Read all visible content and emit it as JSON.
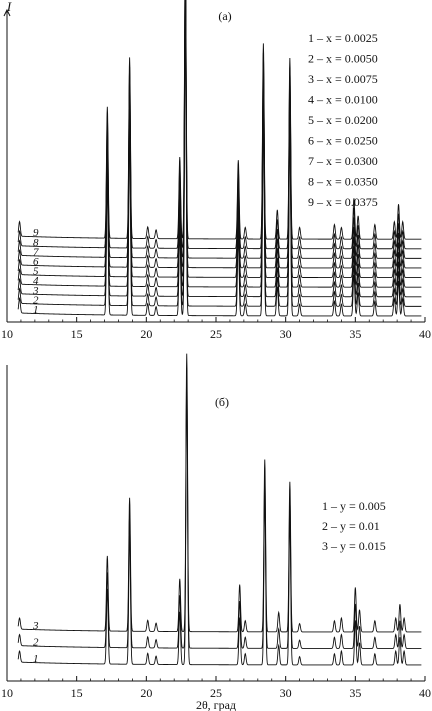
{
  "chart_data": [
    {
      "type": "line",
      "panel_label": "(a)",
      "ylabel": "I",
      "xlabel": "",
      "xlim": [
        10,
        40
      ],
      "xticks": [
        "10",
        "15",
        "20",
        "25",
        "30",
        "35",
        "40"
      ],
      "peaks": [
        {
          "x": 10.9,
          "y": 0.05
        },
        {
          "x": 17.2,
          "y": 0.45
        },
        {
          "x": 18.8,
          "y": 0.62
        },
        {
          "x": 20.1,
          "y": 0.04
        },
        {
          "x": 20.7,
          "y": 0.03
        },
        {
          "x": 22.4,
          "y": 0.28
        },
        {
          "x": 22.8,
          "y": 1.0
        },
        {
          "x": 26.6,
          "y": 0.27
        },
        {
          "x": 27.1,
          "y": 0.04
        },
        {
          "x": 28.4,
          "y": 0.67
        },
        {
          "x": 29.4,
          "y": 0.1
        },
        {
          "x": 30.3,
          "y": 0.62
        },
        {
          "x": 31.0,
          "y": 0.04
        },
        {
          "x": 33.5,
          "y": 0.05
        },
        {
          "x": 34.0,
          "y": 0.04
        },
        {
          "x": 34.9,
          "y": 0.14
        },
        {
          "x": 35.2,
          "y": 0.08
        },
        {
          "x": 36.4,
          "y": 0.05
        },
        {
          "x": 37.8,
          "y": 0.06
        },
        {
          "x": 38.1,
          "y": 0.12
        },
        {
          "x": 38.4,
          "y": 0.06
        }
      ],
      "series": [
        {
          "curve_label": "1",
          "legend": "1 – x = 0.0025"
        },
        {
          "curve_label": "2",
          "legend": "2 – x = 0.0050"
        },
        {
          "curve_label": "3",
          "legend": "3 – x = 0.0075"
        },
        {
          "curve_label": "4",
          "legend": "4 – x = 0.0100"
        },
        {
          "curve_label": "5",
          "legend": "5 – x = 0.0200"
        },
        {
          "curve_label": "6",
          "legend": "6 – x = 0.0250"
        },
        {
          "curve_label": "7",
          "legend": "7 – x = 0.0300"
        },
        {
          "curve_label": "8",
          "legend": "8 – x = 0.0350"
        },
        {
          "curve_label": "9",
          "legend": "9 – x = 0.0375"
        }
      ]
    },
    {
      "type": "line",
      "panel_label": "(б)",
      "ylabel": "",
      "xlabel": "2θ, град",
      "xlim": [
        10,
        40
      ],
      "xticks": [
        "10",
        "15",
        "20",
        "25",
        "30",
        "35",
        "40"
      ],
      "peaks": [
        {
          "x": 10.9,
          "y": 0.04
        },
        {
          "x": 17.2,
          "y": 0.27
        },
        {
          "x": 18.8,
          "y": 0.48
        },
        {
          "x": 20.1,
          "y": 0.04
        },
        {
          "x": 20.7,
          "y": 0.03
        },
        {
          "x": 22.4,
          "y": 0.19
        },
        {
          "x": 22.9,
          "y": 1.0
        },
        {
          "x": 26.7,
          "y": 0.17
        },
        {
          "x": 27.1,
          "y": 0.04
        },
        {
          "x": 28.5,
          "y": 0.62
        },
        {
          "x": 29.5,
          "y": 0.07
        },
        {
          "x": 30.3,
          "y": 0.54
        },
        {
          "x": 31.0,
          "y": 0.03
        },
        {
          "x": 33.5,
          "y": 0.04
        },
        {
          "x": 34.0,
          "y": 0.05
        },
        {
          "x": 35.0,
          "y": 0.16
        },
        {
          "x": 35.3,
          "y": 0.08
        },
        {
          "x": 36.4,
          "y": 0.04
        },
        {
          "x": 37.9,
          "y": 0.05
        },
        {
          "x": 38.2,
          "y": 0.1
        },
        {
          "x": 38.5,
          "y": 0.05
        }
      ],
      "series": [
        {
          "curve_label": "1",
          "legend": "1 – y = 0.005"
        },
        {
          "curve_label": "2",
          "legend": "2 – y = 0.01"
        },
        {
          "curve_label": "3",
          "legend": "3 – y = 0.015"
        }
      ]
    }
  ]
}
